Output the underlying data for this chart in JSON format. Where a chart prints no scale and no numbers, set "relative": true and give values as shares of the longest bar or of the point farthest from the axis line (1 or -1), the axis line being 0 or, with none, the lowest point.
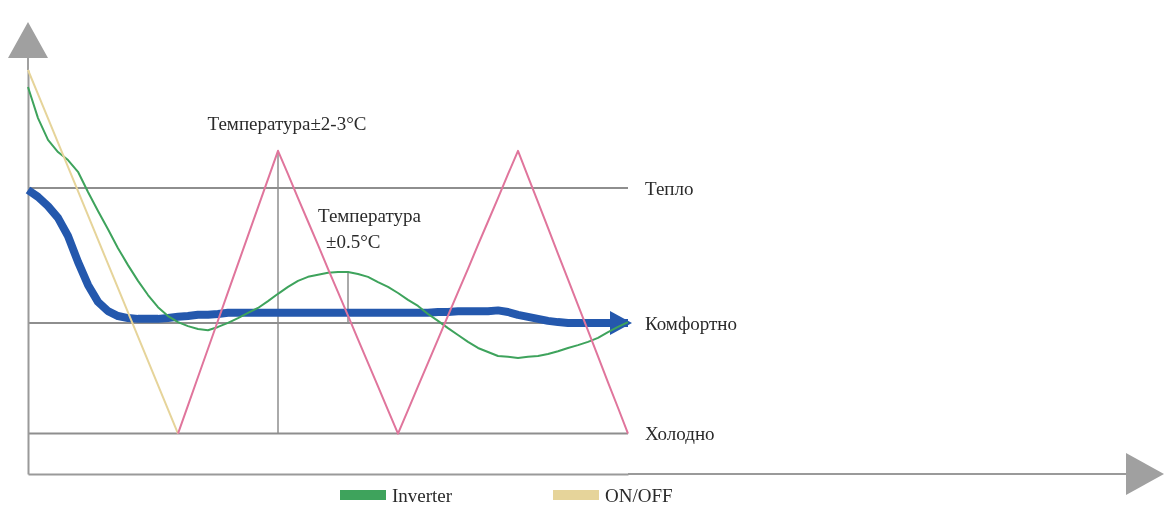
{
  "chart_data": {
    "type": "line",
    "relative": true,
    "legend": "bottom",
    "categories": [
      null,
      null,
      null,
      null,
      null,
      null,
      null,
      null,
      null,
      null,
      null,
      null,
      null,
      null,
      null,
      null,
      null,
      null,
      null,
      null,
      null,
      null,
      null,
      null,
      null,
      null,
      null,
      null,
      null,
      null,
      null,
      null,
      null,
      null,
      null,
      null,
      null,
      null,
      null,
      null,
      null,
      null,
      null,
      null,
      null,
      null,
      null,
      null,
      null,
      null,
      null,
      null,
      null,
      null,
      null,
      null,
      null,
      null,
      null,
      null,
      null
    ],
    "series": [
      {
        "color": "#2458ad",
        "values": [
          0.703,
          0.686,
          0.663,
          0.634,
          0.589,
          0.525,
          0.468,
          0.426,
          0.403,
          0.391,
          0.386,
          0.384,
          0.384,
          0.384,
          0.386,
          0.389,
          0.391,
          0.394,
          0.394,
          0.396,
          0.399,
          0.399,
          0.399,
          0.399,
          0.399,
          0.399,
          0.399,
          0.399,
          0.399,
          0.399,
          0.399,
          0.399,
          0.399,
          0.399,
          0.399,
          0.399,
          0.399,
          0.399,
          0.399,
          0.399,
          0.399,
          0.401,
          0.401,
          0.403,
          0.403,
          0.403,
          0.403,
          0.405,
          0.401,
          0.394,
          0.389,
          0.384,
          0.379,
          0.376,
          0.374,
          0.374,
          0.374,
          0.374,
          0.374,
          0.374,
          0.374
        ]
      },
      {
        "name": "Inverter",
        "color": "#3ea35c",
        "values": [
          0.958,
          0.881,
          0.827,
          0.797,
          0.777,
          0.748,
          0.698,
          0.651,
          0.606,
          0.559,
          0.517,
          0.478,
          0.443,
          0.413,
          0.391,
          0.376,
          0.366,
          0.359,
          0.356,
          0.364,
          0.374,
          0.386,
          0.399,
          0.411,
          0.428,
          0.446,
          0.463,
          0.478,
          0.488,
          0.493,
          0.498,
          0.5,
          0.5,
          0.495,
          0.488,
          0.475,
          0.463,
          0.448,
          0.431,
          0.416,
          0.396,
          0.379,
          0.361,
          0.344,
          0.327,
          0.312,
          0.302,
          0.292,
          0.29,
          0.287,
          0.29,
          0.292,
          0.297,
          0.304,
          0.312,
          0.319,
          0.327,
          0.337,
          0.351,
          0.364,
          0.376
        ]
      },
      {
        "name": "ON/OFF",
        "color": "#e6d49a",
        "values": [
          1.0,
          0.94,
          0.88,
          0.82,
          0.76,
          0.7,
          0.64,
          0.58,
          0.52,
          0.46,
          0.4,
          0.34,
          0.28,
          0.22,
          0.16,
          0.1,
          null,
          null,
          null,
          null,
          null,
          null,
          null,
          null,
          null,
          null,
          null,
          null,
          null,
          null,
          null,
          null,
          null,
          null,
          null,
          null,
          null,
          null,
          null,
          null,
          null,
          null,
          null,
          null,
          null,
          null,
          null,
          null,
          null,
          null,
          null,
          null,
          null,
          null,
          null,
          null,
          null,
          null,
          null,
          null,
          null
        ]
      },
      {
        "color": "#e0759c",
        "values": [
          null,
          null,
          null,
          null,
          null,
          null,
          null,
          null,
          null,
          null,
          null,
          null,
          null,
          null,
          null,
          0.1,
          0.17,
          0.24,
          0.31,
          0.38,
          0.45,
          0.52,
          0.59,
          0.66,
          0.73,
          0.8,
          0.742,
          0.683,
          0.625,
          0.567,
          0.508,
          0.45,
          0.392,
          0.333,
          0.275,
          0.217,
          0.158,
          0.1,
          0.158,
          0.217,
          0.275,
          0.333,
          0.392,
          0.45,
          0.508,
          0.567,
          0.625,
          0.683,
          0.742,
          0.8,
          0.736,
          0.673,
          0.609,
          0.545,
          0.482,
          0.418,
          0.355,
          0.291,
          0.227,
          0.164,
          0.1
        ]
      }
    ],
    "ref_lines": [
      {
        "axis": "y",
        "value": 0.708,
        "label": "Тепло"
      },
      {
        "axis": "y",
        "value": 0.374,
        "label": "Комфортно"
      },
      {
        "axis": "y",
        "value": 0.1,
        "label": "Холодно"
      }
    ],
    "annotations": [
      "Температура±2-3°C",
      "Температура\n±0.5°C"
    ]
  }
}
